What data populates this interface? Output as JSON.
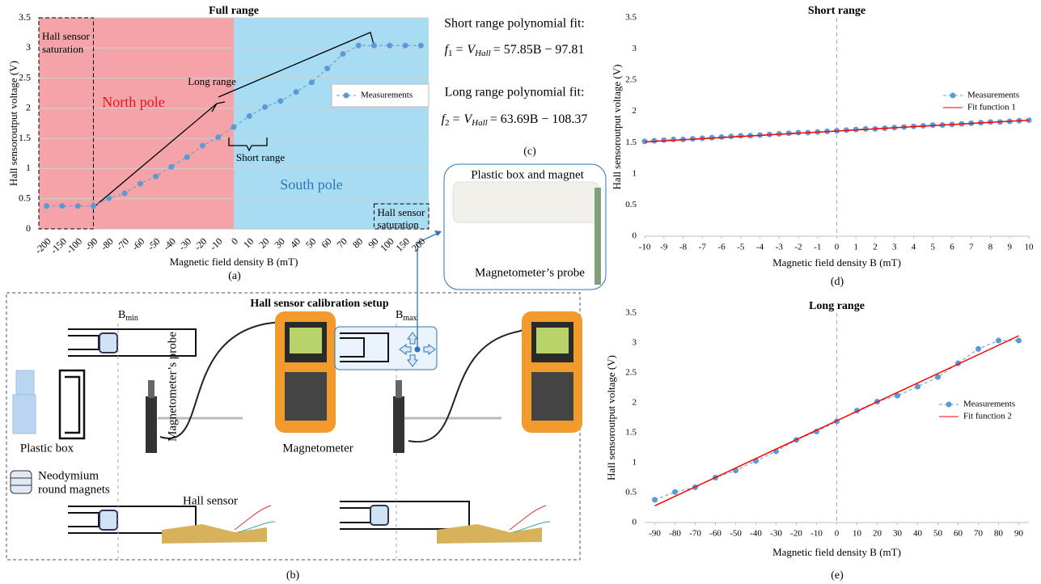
{
  "chart_data": [
    {
      "type": "line",
      "title": "Full range",
      "x_label": "Magnetic field density B (mT)",
      "y_label": "Hall sensoroutput voltage (V)",
      "categories": [
        "-200",
        "-150",
        "-100",
        "-90",
        "-80",
        "-70",
        "-60",
        "-50",
        "-40",
        "-30",
        "-20",
        "-10",
        "0",
        "10",
        "20",
        "30",
        "40",
        "50",
        "60",
        "70",
        "80",
        "90",
        "100",
        "150",
        "200"
      ],
      "series": [
        {
          "name": "Measurements",
          "color": "#5b9bd5",
          "dash": true,
          "marker": true,
          "values": [
            0.38,
            0.38,
            0.38,
            0.38,
            0.51,
            0.59,
            0.75,
            0.87,
            1.03,
            1.19,
            1.38,
            1.52,
            1.69,
            1.87,
            2.02,
            2.12,
            2.27,
            2.43,
            2.66,
            2.9,
            3.04,
            3.04,
            3.04,
            3.04,
            3.04
          ]
        }
      ],
      "ylim": [
        0,
        3.5
      ],
      "yticks": [
        0,
        0.5,
        1,
        1.5,
        2,
        2.5,
        3,
        3.5
      ],
      "grid": true,
      "legend": "right",
      "annotations": {
        "saturation_left": [
          "Hall sensor",
          "saturation"
        ],
        "north": "North pole",
        "south": "South pole",
        "long_range": "Long range",
        "short_range": "Short range",
        "saturation_right": [
          "Hall sensor",
          "saturation"
        ]
      },
      "region_colors": [
        "#f4a3a8",
        "#a7dcf3"
      ]
    },
    {
      "type": "line",
      "title": "Short range",
      "x_label": "Magnetic field density B (mT)",
      "y_label": "Hall sensoroutput voltage (V)",
      "series": [
        {
          "name": "Measurements",
          "color": "#5b9bd5",
          "dash": true,
          "marker": true,
          "x": [
            -10,
            -9.5,
            -9,
            -8.5,
            -8,
            -7.5,
            -7,
            -6.5,
            -6,
            -5.5,
            -5,
            -4.5,
            -4,
            -3.5,
            -3,
            -2.5,
            -2,
            -1.5,
            -1,
            -0.5,
            0,
            0.5,
            1,
            1.5,
            2,
            2.5,
            3,
            3.5,
            4,
            4.5,
            5,
            5.5,
            6,
            6.5,
            7,
            7.5,
            8,
            8.5,
            9,
            9.5,
            10
          ],
          "values": [
            1.52,
            1.53,
            1.54,
            1.55,
            1.55,
            1.56,
            1.57,
            1.58,
            1.59,
            1.6,
            1.61,
            1.61,
            1.62,
            1.63,
            1.64,
            1.65,
            1.66,
            1.66,
            1.67,
            1.68,
            1.69,
            1.7,
            1.71,
            1.72,
            1.72,
            1.73,
            1.74,
            1.75,
            1.76,
            1.77,
            1.78,
            1.78,
            1.79,
            1.8,
            1.81,
            1.82,
            1.83,
            1.83,
            1.84,
            1.85,
            1.86
          ]
        },
        {
          "name": "Fit function 1",
          "color": "#ff0000",
          "dash": false,
          "marker": false,
          "x": [
            -10,
            10
          ],
          "values": [
            1.51,
            1.86
          ]
        }
      ],
      "xlim": [
        -10,
        10
      ],
      "xticks": [
        -10,
        -9,
        -8,
        -7,
        -6,
        -5,
        -4,
        -3,
        -2,
        -1,
        0,
        1,
        2,
        3,
        4,
        5,
        6,
        7,
        8,
        9,
        10
      ],
      "ylim": [
        0,
        3.5
      ],
      "yticks": [
        0,
        0.5,
        1,
        1.5,
        2,
        2.5,
        3,
        3.5
      ],
      "grid": false,
      "legend": "right"
    },
    {
      "type": "line",
      "title": "Long range",
      "x_label": "Magnetic field density B (mT)",
      "y_label": "Hall sensoroutput voltage (V)",
      "series": [
        {
          "name": "Measurements",
          "color": "#5b9bd5",
          "dash": true,
          "marker": true,
          "x": [
            -90,
            -80,
            -70,
            -60,
            -50,
            -40,
            -30,
            -20,
            -10,
            0,
            10,
            20,
            30,
            40,
            50,
            60,
            70,
            80,
            90
          ],
          "values": [
            0.38,
            0.51,
            0.59,
            0.75,
            0.87,
            1.03,
            1.19,
            1.38,
            1.52,
            1.69,
            1.87,
            2.02,
            2.12,
            2.27,
            2.43,
            2.66,
            2.9,
            3.04,
            3.04
          ]
        },
        {
          "name": "Fit function 2",
          "color": "#ff0000",
          "dash": false,
          "marker": false,
          "x": [
            -90,
            90
          ],
          "values": [
            0.28,
            3.12
          ]
        }
      ],
      "xlim": [
        -95,
        95
      ],
      "xticks": [
        -90,
        -80,
        -70,
        -60,
        -50,
        -40,
        -30,
        -20,
        -10,
        0,
        10,
        20,
        30,
        40,
        50,
        60,
        70,
        80,
        90
      ],
      "ylim": [
        0,
        3.5
      ],
      "yticks": [
        0,
        0.5,
        1,
        1.5,
        2,
        2.5,
        3,
        3.5
      ],
      "grid": false,
      "legend": "right"
    }
  ],
  "panel_labels": [
    "(a)",
    "(b)",
    "(c)",
    "(d)",
    "(e)"
  ],
  "fits": {
    "short_title": "Short range polynomial fit:",
    "short_formula": [
      "f",
      "1",
      "= V",
      "Hall",
      "= 57.85B − 97.81"
    ],
    "long_title": "Long range polynomial fit:",
    "long_formula": [
      "f",
      "2",
      "= V",
      "Hall",
      "= 63.69B − 108.37"
    ]
  },
  "setup": {
    "title": "Hall sensor calibration  setup",
    "b_min": [
      "B",
      "min"
    ],
    "b_max": [
      "B",
      "max"
    ],
    "probe": "Magnetometer’s  probe",
    "magnetometer": "Magnetometer",
    "plastic_box": "Plastic box",
    "magnets": [
      "Neodymium",
      "round magnets"
    ],
    "hall_sensor": "Hall  sensor"
  },
  "inset": {
    "title": "Plastic box and magnet",
    "probe": "Magnetometer’s probe"
  }
}
